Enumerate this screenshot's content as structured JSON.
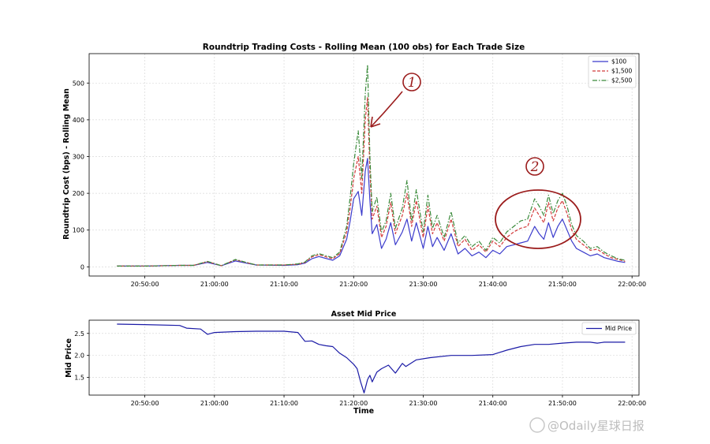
{
  "chart_data": [
    {
      "type": "line",
      "title": "Roundtrip Trading Costs - Rolling Mean (100 obs) for Each Trade Size",
      "ylabel": "Roundtrip Cost (bps) - Rolling Mean",
      "xlabel": "",
      "x_ticks": [
        "20:50:00",
        "21:00:00",
        "21:10:00",
        "21:20:00",
        "21:30:00",
        "21:40:00",
        "21:50:00",
        "22:00:00"
      ],
      "xlim": [
        "20:42:00",
        "22:01:00"
      ],
      "ylim": [
        -25,
        580
      ],
      "y_ticks": [
        0,
        100,
        200,
        300,
        400,
        500
      ],
      "grid": true,
      "legend_position": "top-right",
      "series": [
        {
          "name": "$100",
          "color": "#3b3bcc",
          "style": "solid",
          "x": [
            "20:46:00",
            "20:50:00",
            "20:55:00",
            "20:57:00",
            "20:59:00",
            "21:01:00",
            "21:03:00",
            "21:06:00",
            "21:10:00",
            "21:12:00",
            "21:13:00",
            "21:14:00",
            "21:15:00",
            "21:17:00",
            "21:18:00",
            "21:19:00",
            "21:19:30",
            "21:20:00",
            "21:20:40",
            "21:21:10",
            "21:21:40",
            "21:22:00",
            "21:22:20",
            "21:22:40",
            "21:23:20",
            "21:24:00",
            "21:24:40",
            "21:25:20",
            "21:26:00",
            "21:27:00",
            "21:27:40",
            "21:28:20",
            "21:29:00",
            "21:30:00",
            "21:30:40",
            "21:31:20",
            "21:32:00",
            "21:33:00",
            "21:34:00",
            "21:35:00",
            "21:36:00",
            "21:37:00",
            "21:38:00",
            "21:39:00",
            "21:40:00",
            "21:41:00",
            "21:42:00",
            "21:43:00",
            "21:44:00",
            "21:45:00",
            "21:46:00",
            "21:46:40",
            "21:47:20",
            "21:48:00",
            "21:48:40",
            "21:49:20",
            "21:50:00",
            "21:50:40",
            "21:51:20",
            "21:52:00",
            "21:53:00",
            "21:54:00",
            "21:55:00",
            "21:56:00",
            "21:57:00",
            "21:58:00",
            "21:59:00"
          ],
          "values": [
            2,
            2,
            4,
            4,
            12,
            3,
            16,
            5,
            4,
            6,
            10,
            22,
            28,
            18,
            30,
            75,
            125,
            185,
            205,
            140,
            260,
            295,
            180,
            90,
            115,
            50,
            75,
            120,
            60,
            95,
            130,
            70,
            120,
            50,
            110,
            55,
            80,
            45,
            90,
            35,
            50,
            30,
            40,
            25,
            45,
            35,
            55,
            60,
            65,
            70,
            110,
            90,
            75,
            120,
            80,
            110,
            130,
            100,
            70,
            50,
            40,
            30,
            35,
            25,
            20,
            15,
            12
          ]
        },
        {
          "name": "$1,500",
          "color": "#d23a3a",
          "style": "dashed",
          "x": [
            "20:46:00",
            "20:50:00",
            "20:55:00",
            "20:57:00",
            "20:59:00",
            "21:01:00",
            "21:03:00",
            "21:06:00",
            "21:10:00",
            "21:12:00",
            "21:13:00",
            "21:14:00",
            "21:15:00",
            "21:17:00",
            "21:18:00",
            "21:19:00",
            "21:19:30",
            "21:20:00",
            "21:20:40",
            "21:21:10",
            "21:21:40",
            "21:22:00",
            "21:22:20",
            "21:22:40",
            "21:23:20",
            "21:24:00",
            "21:24:40",
            "21:25:20",
            "21:26:00",
            "21:27:00",
            "21:27:40",
            "21:28:20",
            "21:29:00",
            "21:30:00",
            "21:30:40",
            "21:31:20",
            "21:32:00",
            "21:33:00",
            "21:34:00",
            "21:35:00",
            "21:36:00",
            "21:37:00",
            "21:38:00",
            "21:39:00",
            "21:40:00",
            "21:41:00",
            "21:42:00",
            "21:43:00",
            "21:44:00",
            "21:45:00",
            "21:46:00",
            "21:46:40",
            "21:47:20",
            "21:48:00",
            "21:48:40",
            "21:49:20",
            "21:50:00",
            "21:50:40",
            "21:51:20",
            "21:52:00",
            "21:53:00",
            "21:54:00",
            "21:55:00",
            "21:56:00",
            "21:57:00",
            "21:58:00",
            "21:59:00"
          ],
          "values": [
            2,
            2,
            4,
            4,
            14,
            3,
            19,
            5,
            5,
            7,
            12,
            27,
            33,
            22,
            36,
            95,
            160,
            240,
            300,
            200,
            400,
            460,
            260,
            130,
            165,
            80,
            110,
            175,
            90,
            140,
            200,
            110,
            180,
            80,
            165,
            90,
            120,
            70,
            130,
            55,
            75,
            45,
            60,
            40,
            70,
            55,
            80,
            95,
            105,
            110,
            160,
            140,
            120,
            175,
            125,
            160,
            180,
            145,
            100,
            75,
            60,
            45,
            48,
            35,
            25,
            20,
            15
          ]
        },
        {
          "name": "$2,500",
          "color": "#3a8a3a",
          "style": "dashdot",
          "x": [
            "20:46:00",
            "20:50:00",
            "20:55:00",
            "20:57:00",
            "20:59:00",
            "21:01:00",
            "21:03:00",
            "21:06:00",
            "21:10:00",
            "21:12:00",
            "21:13:00",
            "21:14:00",
            "21:15:00",
            "21:17:00",
            "21:18:00",
            "21:19:00",
            "21:19:30",
            "21:20:00",
            "21:20:40",
            "21:21:10",
            "21:21:40",
            "21:22:00",
            "21:22:20",
            "21:22:40",
            "21:23:20",
            "21:24:00",
            "21:24:40",
            "21:25:20",
            "21:26:00",
            "21:27:00",
            "21:27:40",
            "21:28:20",
            "21:29:00",
            "21:30:00",
            "21:30:40",
            "21:31:20",
            "21:32:00",
            "21:33:00",
            "21:34:00",
            "21:35:00",
            "21:36:00",
            "21:37:00",
            "21:38:00",
            "21:39:00",
            "21:40:00",
            "21:41:00",
            "21:42:00",
            "21:43:00",
            "21:44:00",
            "21:45:00",
            "21:46:00",
            "21:46:40",
            "21:47:20",
            "21:48:00",
            "21:48:40",
            "21:49:20",
            "21:50:00",
            "21:50:40",
            "21:51:20",
            "21:52:00",
            "21:53:00",
            "21:54:00",
            "21:55:00",
            "21:56:00",
            "21:57:00",
            "21:58:00",
            "21:59:00"
          ],
          "values": [
            2,
            2,
            4,
            4,
            15,
            3,
            20,
            5,
            5,
            8,
            13,
            30,
            36,
            25,
            40,
            110,
            190,
            280,
            370,
            240,
            470,
            550,
            300,
            150,
            190,
            95,
            125,
            200,
            105,
            160,
            235,
            125,
            210,
            95,
            195,
            105,
            140,
            80,
            150,
            65,
            85,
            55,
            70,
            45,
            80,
            65,
            95,
            110,
            125,
            130,
            185,
            165,
            140,
            195,
            145,
            180,
            200,
            165,
            115,
            85,
            70,
            50,
            55,
            40,
            30,
            22,
            18
          ]
        }
      ],
      "annotations": [
        "1",
        "2"
      ]
    },
    {
      "type": "line",
      "title": "Asset Mid Price",
      "xlabel": "Time",
      "ylabel": "Mid Price",
      "x_ticks": [
        "20:50:00",
        "21:00:00",
        "21:10:00",
        "21:20:00",
        "21:30:00",
        "21:40:00",
        "21:50:00",
        "22:00:00"
      ],
      "xlim": [
        "20:42:00",
        "22:01:00"
      ],
      "ylim": [
        1.1,
        2.8
      ],
      "y_ticks": [
        1.5,
        2.0,
        2.5
      ],
      "grid": true,
      "legend_position": "top-right",
      "series": [
        {
          "name": "Mid Price",
          "color": "#1a1aa6",
          "style": "solid",
          "x": [
            "20:46:00",
            "20:50:00",
            "20:55:00",
            "20:56:00",
            "20:58:00",
            "20:59:00",
            "21:00:00",
            "21:03:00",
            "21:06:00",
            "21:10:00",
            "21:12:00",
            "21:13:00",
            "21:14:00",
            "21:15:00",
            "21:16:00",
            "21:17:00",
            "21:18:00",
            "21:19:00",
            "21:20:00",
            "21:20:30",
            "21:21:00",
            "21:21:30",
            "21:22:00",
            "21:22:20",
            "21:22:40",
            "21:23:20",
            "21:24:00",
            "21:25:00",
            "21:26:00",
            "21:27:00",
            "21:27:30",
            "21:29:00",
            "21:31:00",
            "21:34:00",
            "21:37:00",
            "21:40:00",
            "21:42:00",
            "21:44:00",
            "21:46:00",
            "21:48:00",
            "21:50:00",
            "21:52:00",
            "21:54:00",
            "21:55:00",
            "21:56:00",
            "21:59:00"
          ],
          "values": [
            2.71,
            2.7,
            2.68,
            2.62,
            2.6,
            2.48,
            2.52,
            2.54,
            2.55,
            2.55,
            2.52,
            2.32,
            2.33,
            2.25,
            2.22,
            2.2,
            2.05,
            1.95,
            1.8,
            1.7,
            1.4,
            1.15,
            1.45,
            1.55,
            1.4,
            1.62,
            1.7,
            1.78,
            1.6,
            1.82,
            1.75,
            1.9,
            1.95,
            2.0,
            2.0,
            2.02,
            2.12,
            2.2,
            2.25,
            2.25,
            2.28,
            2.3,
            2.3,
            2.28,
            2.3,
            2.3
          ]
        }
      ]
    }
  ],
  "watermark": "@Odaily星球日报"
}
